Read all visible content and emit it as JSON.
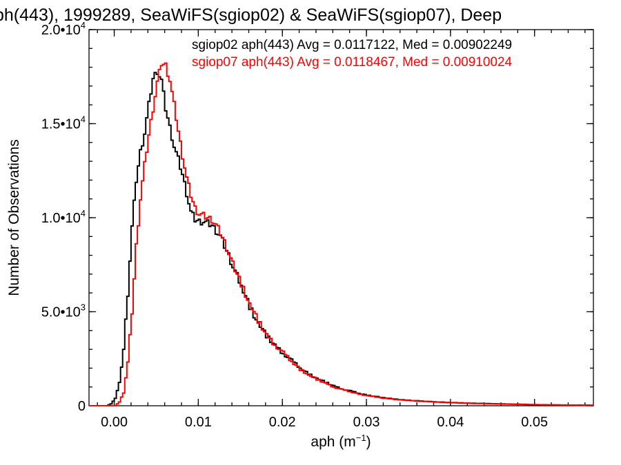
{
  "chart_data": {
    "type": "line",
    "title": "ph(443), 1999289, SeaWiFS(sgiop02) & SeaWiFS(sgiop07), Deep",
    "xlabel_base": "aph (m",
    "xlabel_sup": "−1",
    "xlabel_end": ")",
    "ylabel": "Number of Observations",
    "xlim": [
      -0.003,
      0.057
    ],
    "ylim": [
      0,
      20000
    ],
    "x_ticks": [
      {
        "value": 0.0,
        "label": "0.00"
      },
      {
        "value": 0.01,
        "label": "0.01"
      },
      {
        "value": 0.02,
        "label": "0.02"
      },
      {
        "value": 0.03,
        "label": "0.03"
      },
      {
        "value": 0.04,
        "label": "0.04"
      },
      {
        "value": 0.05,
        "label": "0.05"
      }
    ],
    "y_ticks": [
      {
        "value": 0,
        "base": "0",
        "sup": ""
      },
      {
        "value": 5000,
        "base": "5.0•10",
        "sup": "3"
      },
      {
        "value": 10000,
        "base": "1.0•10",
        "sup": "4"
      },
      {
        "value": 15000,
        "base": "1.5•10",
        "sup": "4"
      },
      {
        "value": 20000,
        "base": "2.0•10",
        "sup": "4"
      }
    ],
    "grid": false,
    "legend_position": "top-right",
    "series": [
      {
        "name": "sgiop02 aph(443) Avg = 0.0117122, Med = 0.00902249",
        "color": "#000000",
        "points": [
          [
            -0.003,
            0
          ],
          [
            -0.001,
            0
          ],
          [
            -0.0005,
            100
          ],
          [
            0.0,
            400
          ],
          [
            0.0005,
            1200
          ],
          [
            0.001,
            3000
          ],
          [
            0.0015,
            6000
          ],
          [
            0.002,
            9500
          ],
          [
            0.0025,
            12000
          ],
          [
            0.003,
            13500
          ],
          [
            0.0035,
            14500
          ],
          [
            0.004,
            16000
          ],
          [
            0.0045,
            17400
          ],
          [
            0.005,
            17800
          ],
          [
            0.0055,
            17300
          ],
          [
            0.006,
            15800
          ],
          [
            0.0065,
            14800
          ],
          [
            0.007,
            13800
          ],
          [
            0.0075,
            13100
          ],
          [
            0.008,
            12300
          ],
          [
            0.0085,
            11300
          ],
          [
            0.009,
            10300
          ],
          [
            0.0095,
            9900
          ],
          [
            0.01,
            9800
          ],
          [
            0.0105,
            9800
          ],
          [
            0.011,
            9700
          ],
          [
            0.0115,
            9600
          ],
          [
            0.012,
            9300
          ],
          [
            0.0125,
            9000
          ],
          [
            0.013,
            8500
          ],
          [
            0.0135,
            8000
          ],
          [
            0.014,
            7400
          ],
          [
            0.015,
            6400
          ],
          [
            0.016,
            5300
          ],
          [
            0.017,
            4400
          ],
          [
            0.018,
            3700
          ],
          [
            0.019,
            3200
          ],
          [
            0.02,
            2800
          ],
          [
            0.021,
            2400
          ],
          [
            0.022,
            2000
          ],
          [
            0.023,
            1700
          ],
          [
            0.024,
            1450
          ],
          [
            0.025,
            1250
          ],
          [
            0.026,
            1050
          ],
          [
            0.027,
            900
          ],
          [
            0.028,
            780
          ],
          [
            0.029,
            660
          ],
          [
            0.03,
            560
          ],
          [
            0.032,
            420
          ],
          [
            0.034,
            320
          ],
          [
            0.036,
            260
          ],
          [
            0.038,
            210
          ],
          [
            0.04,
            170
          ],
          [
            0.042,
            140
          ],
          [
            0.045,
            110
          ],
          [
            0.048,
            80
          ],
          [
            0.05,
            60
          ],
          [
            0.053,
            40
          ],
          [
            0.057,
            30
          ]
        ]
      },
      {
        "name": "sgiop07 aph(443) Avg = 0.0118467, Med = 0.00910024",
        "color": "#ff0000",
        "points": [
          [
            -0.003,
            0
          ],
          [
            0.0,
            0
          ],
          [
            0.0005,
            200
          ],
          [
            0.001,
            700
          ],
          [
            0.0015,
            2300
          ],
          [
            0.002,
            5000
          ],
          [
            0.0025,
            8500
          ],
          [
            0.003,
            11000
          ],
          [
            0.0035,
            12800
          ],
          [
            0.004,
            14400
          ],
          [
            0.0045,
            15800
          ],
          [
            0.005,
            17200
          ],
          [
            0.0055,
            18200
          ],
          [
            0.006,
            18100
          ],
          [
            0.0065,
            17300
          ],
          [
            0.007,
            16000
          ],
          [
            0.0075,
            14600
          ],
          [
            0.008,
            13300
          ],
          [
            0.0085,
            12100
          ],
          [
            0.009,
            11200
          ],
          [
            0.0095,
            10500
          ],
          [
            0.01,
            10200
          ],
          [
            0.0105,
            10100
          ],
          [
            0.011,
            10000
          ],
          [
            0.0115,
            9900
          ],
          [
            0.012,
            9600
          ],
          [
            0.0125,
            9200
          ],
          [
            0.013,
            8700
          ],
          [
            0.0135,
            8100
          ],
          [
            0.014,
            7500
          ],
          [
            0.015,
            6500
          ],
          [
            0.016,
            5400
          ],
          [
            0.017,
            4500
          ],
          [
            0.018,
            3750
          ],
          [
            0.019,
            3250
          ],
          [
            0.02,
            2800
          ],
          [
            0.021,
            2350
          ],
          [
            0.022,
            1950
          ],
          [
            0.023,
            1650
          ],
          [
            0.024,
            1400
          ],
          [
            0.025,
            1200
          ],
          [
            0.026,
            1000
          ],
          [
            0.027,
            860
          ],
          [
            0.028,
            740
          ],
          [
            0.029,
            630
          ],
          [
            0.03,
            540
          ],
          [
            0.032,
            400
          ],
          [
            0.034,
            310
          ],
          [
            0.036,
            250
          ],
          [
            0.038,
            200
          ],
          [
            0.04,
            160
          ],
          [
            0.042,
            130
          ],
          [
            0.045,
            100
          ],
          [
            0.048,
            75
          ],
          [
            0.05,
            55
          ],
          [
            0.053,
            38
          ],
          [
            0.057,
            25
          ]
        ]
      }
    ]
  }
}
